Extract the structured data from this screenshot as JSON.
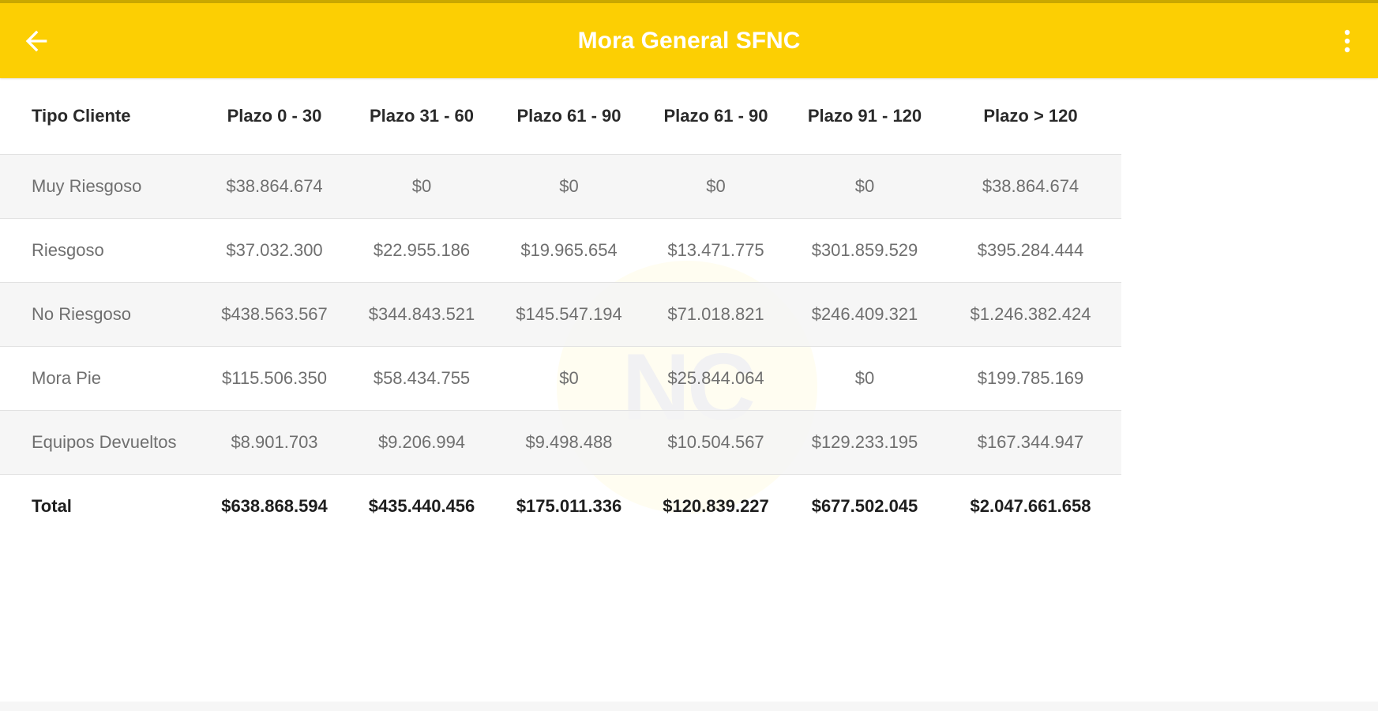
{
  "app_bar": {
    "title": "Mora General SFNC",
    "color": "#fccf03",
    "back_icon": "arrow-left-icon",
    "menu_icon": "more-vertical-icon"
  },
  "watermark": {
    "text": "NC"
  },
  "table": {
    "headers": [
      "Tipo Cliente",
      "Plazo 0 - 30",
      "Plazo 31 - 60",
      "Plazo 61 - 90",
      "Plazo 61 - 90",
      "Plazo 91 - 120",
      "Plazo > 120"
    ],
    "rows": [
      [
        "Muy Riesgoso",
        "$38.864.674",
        "$0",
        "$0",
        "$0",
        "$0",
        "$38.864.674"
      ],
      [
        "Riesgoso",
        "$37.032.300",
        "$22.955.186",
        "$19.965.654",
        "$13.471.775",
        "$301.859.529",
        "$395.284.444"
      ],
      [
        "No Riesgoso",
        "$438.563.567",
        "$344.843.521",
        "$145.547.194",
        "$71.018.821",
        "$246.409.321",
        "$1.246.382.424"
      ],
      [
        "Mora Pie",
        "$115.506.350",
        "$58.434.755",
        "$0",
        "$25.844.064",
        "$0",
        "$199.785.169"
      ],
      [
        "Equipos Devueltos",
        "$8.901.703",
        "$9.206.994",
        "$9.498.488",
        "$10.504.567",
        "$129.233.195",
        "$167.344.947"
      ]
    ],
    "total": [
      "Total",
      "$638.868.594",
      "$435.440.456",
      "$175.011.336",
      "$120.839.227",
      "$677.502.045",
      "$2.047.661.658"
    ]
  }
}
